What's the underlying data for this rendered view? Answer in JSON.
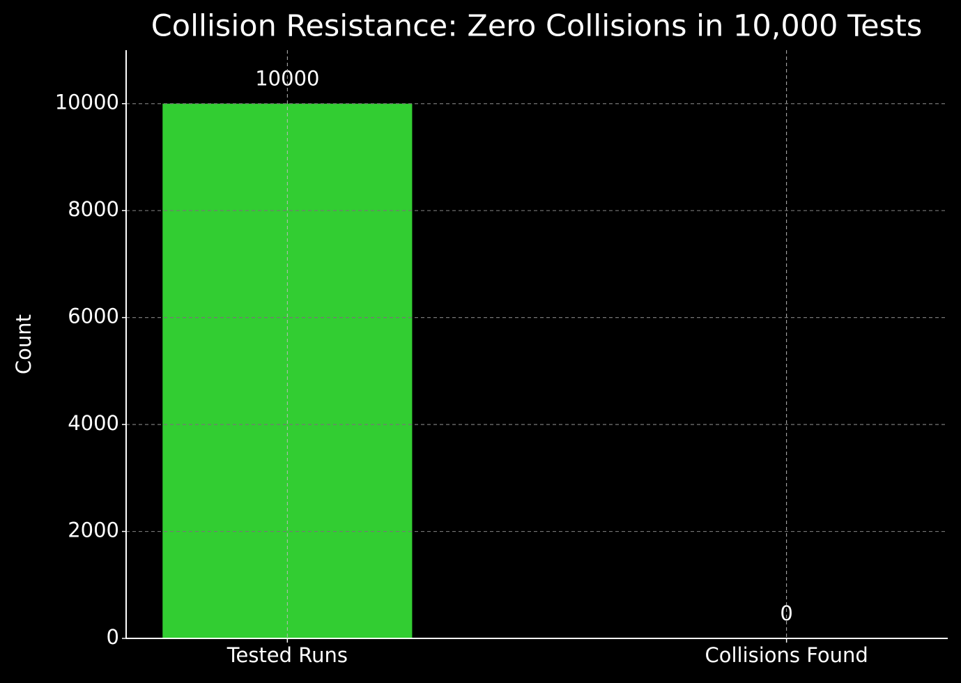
{
  "chart_data": {
    "type": "bar",
    "title": "Collision Resistance: Zero Collisions in 10,000 Tests",
    "y_label": "Count",
    "categories": [
      "Tested Runs",
      "Collisions Found"
    ],
    "values": [
      10000,
      0
    ],
    "color": "#32cd32",
    "ylim": [
      0,
      11000
    ],
    "yticks": [
      0,
      2000,
      4000,
      6000,
      8000,
      10000
    ],
    "grid": true
  }
}
